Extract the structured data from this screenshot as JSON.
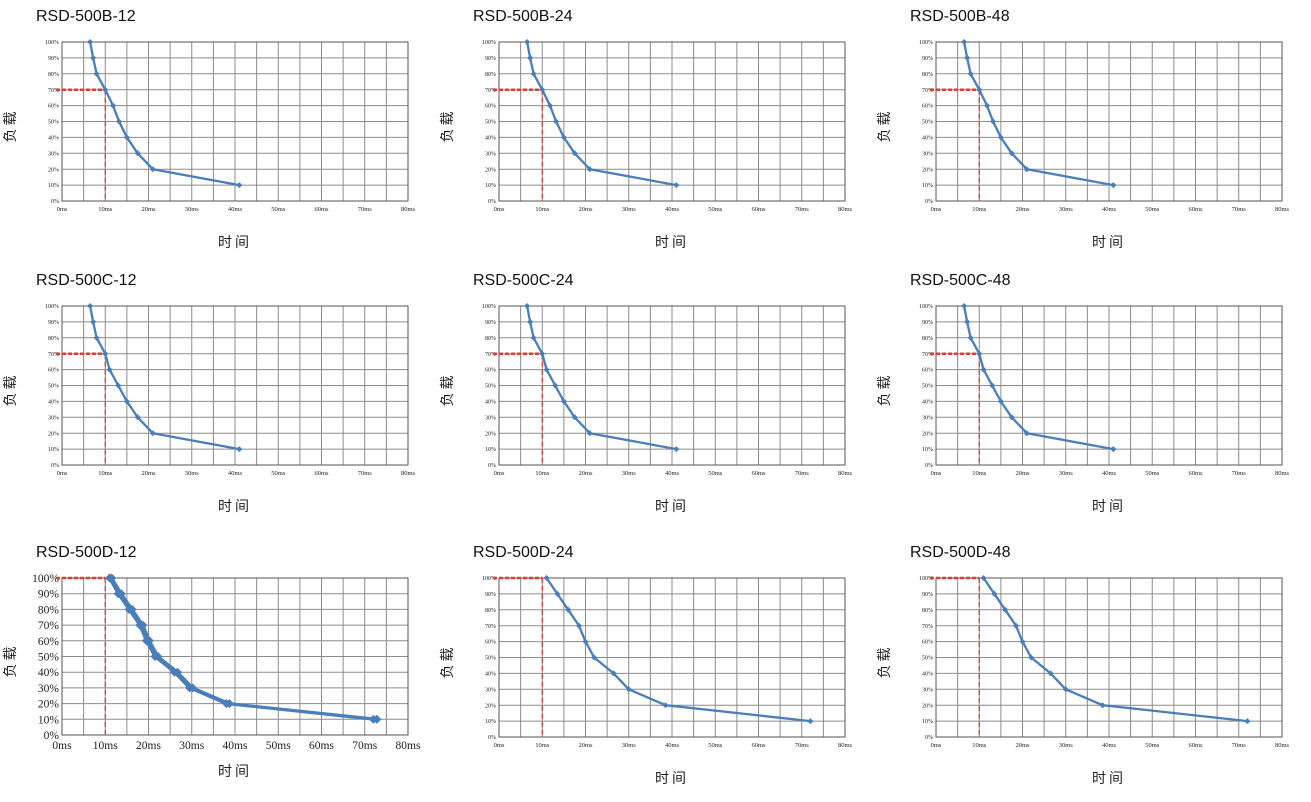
{
  "chart_data": [
    {
      "type": "line",
      "title": "RSD-500B-12",
      "xlabel": "时间",
      "ylabel": "负载",
      "x_ticks": [
        "0ms",
        "10ms",
        "20ms",
        "30ms",
        "40ms",
        "50ms",
        "60ms",
        "70ms",
        "80ms"
      ],
      "y_ticks": [
        "0%",
        "10%",
        "20%",
        "30%",
        "40%",
        "50%",
        "60%",
        "70%",
        "80%",
        "90%",
        "100%"
      ],
      "xlim": [
        0,
        80
      ],
      "ylim": [
        0,
        100
      ],
      "grid": true,
      "series": [
        {
          "x": [
            6.5,
            7.2,
            8.0,
            10.0,
            11.8,
            13.2,
            15.0,
            17.5,
            21.0,
            41.0
          ],
          "y": [
            100,
            90,
            80,
            70,
            60,
            50,
            40,
            30,
            20,
            10
          ]
        }
      ],
      "reference": {
        "x": 10,
        "y": 70
      },
      "big_ticks": false
    },
    {
      "type": "line",
      "title": "RSD-500B-24",
      "xlabel": "时间",
      "ylabel": "负载",
      "x_ticks": [
        "0ms",
        "10ms",
        "20ms",
        "30ms",
        "40ms",
        "50ms",
        "60ms",
        "70ms",
        "80ms"
      ],
      "y_ticks": [
        "0%",
        "10%",
        "20%",
        "30%",
        "40%",
        "50%",
        "60%",
        "70%",
        "80%",
        "90%",
        "100%"
      ],
      "xlim": [
        0,
        80
      ],
      "ylim": [
        0,
        100
      ],
      "grid": true,
      "series": [
        {
          "x": [
            6.5,
            7.2,
            8.0,
            10.0,
            11.8,
            13.2,
            15.0,
            17.5,
            21.0,
            41.0
          ],
          "y": [
            100,
            90,
            80,
            70,
            60,
            50,
            40,
            30,
            20,
            10
          ]
        }
      ],
      "reference": {
        "x": 10,
        "y": 70
      },
      "big_ticks": false
    },
    {
      "type": "line",
      "title": "RSD-500B-48",
      "xlabel": "时间",
      "ylabel": "负载",
      "x_ticks": [
        "0ms",
        "10ms",
        "20ms",
        "30ms",
        "40ms",
        "50ms",
        "60ms",
        "70ms",
        "80ms"
      ],
      "y_ticks": [
        "0%",
        "10%",
        "20%",
        "30%",
        "40%",
        "50%",
        "60%",
        "70%",
        "80%",
        "90%",
        "100%"
      ],
      "xlim": [
        0,
        80
      ],
      "ylim": [
        0,
        100
      ],
      "grid": true,
      "series": [
        {
          "x": [
            6.5,
            7.2,
            8.0,
            10.0,
            11.8,
            13.2,
            15.0,
            17.5,
            21.0,
            41.0
          ],
          "y": [
            100,
            90,
            80,
            70,
            60,
            50,
            40,
            30,
            20,
            10
          ]
        }
      ],
      "reference": {
        "x": 10,
        "y": 70
      },
      "big_ticks": false
    },
    {
      "type": "line",
      "title": "RSD-500C-12",
      "xlabel": "时间",
      "ylabel": "负载",
      "x_ticks": [
        "0ms",
        "10ms",
        "20ms",
        "30ms",
        "40ms",
        "50ms",
        "60ms",
        "70ms",
        "80ms"
      ],
      "y_ticks": [
        "0%",
        "10%",
        "20%",
        "30%",
        "40%",
        "50%",
        "60%",
        "70%",
        "80%",
        "90%",
        "100%"
      ],
      "xlim": [
        0,
        80
      ],
      "ylim": [
        0,
        100
      ],
      "grid": true,
      "series": [
        {
          "x": [
            6.5,
            7.2,
            8.0,
            10.0,
            11.0,
            13.0,
            15.0,
            17.5,
            21.0,
            41.0
          ],
          "y": [
            100,
            90,
            80,
            70,
            60,
            50,
            40,
            30,
            20,
            10
          ]
        }
      ],
      "reference": {
        "x": 10,
        "y": 70
      },
      "big_ticks": false
    },
    {
      "type": "line",
      "title": "RSD-500C-24",
      "xlabel": "时间",
      "ylabel": "负载",
      "x_ticks": [
        "0ms",
        "10ms",
        "20ms",
        "30ms",
        "40ms",
        "50ms",
        "60ms",
        "70ms",
        "80ms"
      ],
      "y_ticks": [
        "0%",
        "10%",
        "20%",
        "30%",
        "40%",
        "50%",
        "60%",
        "70%",
        "80%",
        "90%",
        "100%"
      ],
      "xlim": [
        0,
        80
      ],
      "ylim": [
        0,
        100
      ],
      "grid": true,
      "series": [
        {
          "x": [
            6.5,
            7.2,
            8.0,
            10.0,
            11.0,
            13.0,
            15.0,
            17.5,
            21.0,
            41.0
          ],
          "y": [
            100,
            90,
            80,
            70,
            60,
            50,
            40,
            30,
            20,
            10
          ]
        }
      ],
      "reference": {
        "x": 10,
        "y": 70
      },
      "big_ticks": false
    },
    {
      "type": "line",
      "title": "RSD-500C-48",
      "xlabel": "时间",
      "ylabel": "负载",
      "x_ticks": [
        "0ms",
        "10ms",
        "20ms",
        "30ms",
        "40ms",
        "50ms",
        "60ms",
        "70ms",
        "80ms"
      ],
      "y_ticks": [
        "0%",
        "10%",
        "20%",
        "30%",
        "40%",
        "50%",
        "60%",
        "70%",
        "80%",
        "90%",
        "100%"
      ],
      "xlim": [
        0,
        80
      ],
      "ylim": [
        0,
        100
      ],
      "grid": true,
      "series": [
        {
          "x": [
            6.5,
            7.2,
            8.0,
            10.0,
            11.0,
            13.0,
            15.0,
            17.5,
            21.0,
            41.0
          ],
          "y": [
            100,
            90,
            80,
            70,
            60,
            50,
            40,
            30,
            20,
            10
          ]
        }
      ],
      "reference": {
        "x": 10,
        "y": 70
      },
      "big_ticks": false
    },
    {
      "type": "line",
      "title": "RSD-500D-12",
      "xlabel": "时间",
      "ylabel": "负载",
      "x_ticks": [
        "0ms",
        "10ms",
        "20ms",
        "30ms",
        "40ms",
        "50ms",
        "60ms",
        "70ms",
        "80ms"
      ],
      "y_ticks": [
        "0%",
        "10%",
        "20%",
        "30%",
        "40%",
        "50%",
        "60%",
        "70%",
        "80%",
        "90%",
        "100%"
      ],
      "xlim": [
        0,
        80
      ],
      "ylim": [
        0,
        100
      ],
      "grid": true,
      "series": [
        {
          "x": [
            11.0,
            13.0,
            15.5,
            18.0,
            19.5,
            21.5,
            26.0,
            29.5,
            38.0,
            72.0
          ],
          "y": [
            100,
            90,
            80,
            70,
            60,
            50,
            40,
            30,
            20,
            10
          ]
        },
        {
          "x": [
            11.5,
            13.7,
            16.2,
            18.7,
            20.2,
            22.2,
            26.7,
            30.2,
            38.7,
            72.8
          ],
          "y": [
            100,
            90,
            80,
            70,
            60,
            50,
            40,
            30,
            20,
            10
          ]
        }
      ],
      "reference": {
        "x": 10,
        "y": 100
      },
      "big_ticks": true
    },
    {
      "type": "line",
      "title": "RSD-500D-24",
      "xlabel": "时间",
      "ylabel": "负载",
      "x_ticks": [
        "0ms",
        "10ms",
        "20ms",
        "30ms",
        "40ms",
        "50ms",
        "60ms",
        "70ms",
        "80ms"
      ],
      "y_ticks": [
        "0%",
        "10%",
        "20%",
        "30%",
        "40%",
        "50%",
        "60%",
        "70%",
        "80%",
        "90%",
        "100%"
      ],
      "xlim": [
        0,
        80
      ],
      "ylim": [
        0,
        100
      ],
      "grid": true,
      "series": [
        {
          "x": [
            11.0,
            13.5,
            16.0,
            18.5,
            20.0,
            22.0,
            26.5,
            30.0,
            38.5,
            72.0
          ],
          "y": [
            100,
            90,
            80,
            70,
            60,
            50,
            40,
            30,
            20,
            10
          ]
        }
      ],
      "reference": {
        "x": 10,
        "y": 100
      },
      "big_ticks": false
    },
    {
      "type": "line",
      "title": "RSD-500D-48",
      "xlabel": "时间",
      "ylabel": "负载",
      "x_ticks": [
        "0ms",
        "10ms",
        "20ms",
        "30ms",
        "40ms",
        "50ms",
        "60ms",
        "70ms",
        "80ms"
      ],
      "y_ticks": [
        "0%",
        "10%",
        "20%",
        "30%",
        "40%",
        "50%",
        "60%",
        "70%",
        "80%",
        "90%",
        "100%"
      ],
      "xlim": [
        0,
        80
      ],
      "ylim": [
        0,
        100
      ],
      "grid": true,
      "series": [
        {
          "x": [
            11.0,
            13.5,
            16.0,
            18.5,
            20.0,
            22.0,
            26.5,
            30.0,
            38.5,
            72.0
          ],
          "y": [
            100,
            90,
            80,
            70,
            60,
            50,
            40,
            30,
            20,
            10
          ]
        }
      ],
      "reference": {
        "x": 10,
        "y": 100
      },
      "big_ticks": false
    }
  ],
  "colors": {
    "series": "#4a7ebb",
    "reference": "#e03c31",
    "grid": "#8c8c8c",
    "axis": "#555555"
  }
}
